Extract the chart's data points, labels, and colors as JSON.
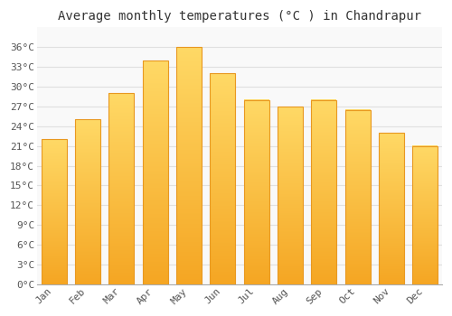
{
  "title": "Average monthly temperatures (°C ) in Chandrapur",
  "months": [
    "Jan",
    "Feb",
    "Mar",
    "Apr",
    "May",
    "Jun",
    "Jul",
    "Aug",
    "Sep",
    "Oct",
    "Nov",
    "Dec"
  ],
  "temperatures": [
    22,
    25,
    29,
    34,
    36,
    32,
    28,
    27,
    28,
    26.5,
    23,
    21
  ],
  "bar_color_top": "#FFD966",
  "bar_color_bottom": "#F5A623",
  "bar_edge_color": "#E89820",
  "ylim": [
    0,
    39
  ],
  "yticks": [
    0,
    3,
    6,
    9,
    12,
    15,
    18,
    21,
    24,
    27,
    30,
    33,
    36
  ],
  "ytick_labels": [
    "0°C",
    "3°C",
    "6°C",
    "9°C",
    "12°C",
    "15°C",
    "18°C",
    "21°C",
    "24°C",
    "27°C",
    "30°C",
    "33°C",
    "36°C"
  ],
  "background_color": "#ffffff",
  "plot_bg_color": "#f9f9f9",
  "grid_color": "#e0e0e0",
  "title_fontsize": 10,
  "tick_fontsize": 8,
  "font_family": "monospace",
  "bar_width": 0.75
}
